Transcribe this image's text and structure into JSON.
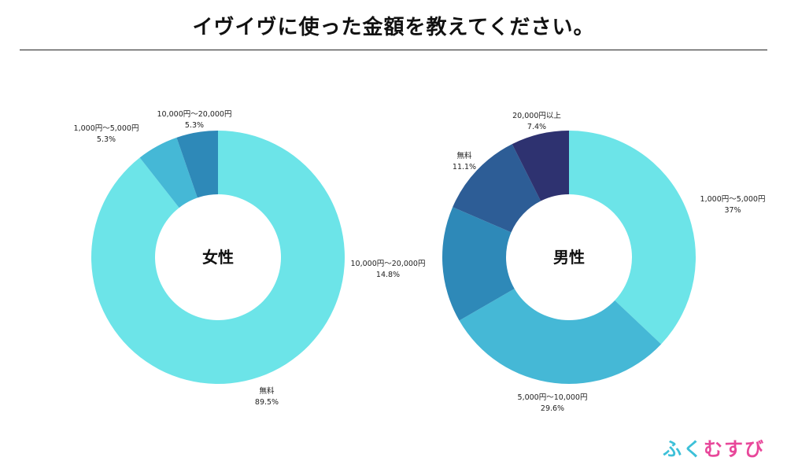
{
  "title": "イヴイヴに使った金額を教えてください。",
  "logo": {
    "chars": [
      "ふ",
      "く",
      "む",
      "す",
      "び"
    ],
    "colors": [
      "#3dc0d8",
      "#3dc0d8",
      "#e8479a",
      "#e8479a",
      "#e8479a"
    ]
  },
  "chart_data": [
    {
      "type": "pie",
      "donut": true,
      "center_label": "女性",
      "slices": [
        {
          "label": "無料",
          "value_text": "89.5%",
          "value": 89.5,
          "color": "#6ce4e8"
        },
        {
          "label": "1,000円〜5,000円",
          "value_text": "5.3%",
          "value": 5.3,
          "color": "#45b8d6"
        },
        {
          "label": "10,000円〜20,000円",
          "value_text": "5.3%",
          "value": 5.3,
          "color": "#2e89b8"
        }
      ],
      "extra_labels": [
        {
          "label": "10,000円〜20,000円",
          "value_text": "14.8%"
        }
      ]
    },
    {
      "type": "pie",
      "donut": true,
      "center_label": "男性",
      "slices": [
        {
          "label": "1,000円〜5,000円",
          "value_text": "37%",
          "value": 37.0,
          "color": "#6ce4e8"
        },
        {
          "label": "5,000円〜10,000円",
          "value_text": "29.6%",
          "value": 29.6,
          "color": "#45b8d6"
        },
        {
          "label": "",
          "value_text": "",
          "value": 14.8,
          "color": "#2e89b8"
        },
        {
          "label": "無料",
          "value_text": "11.1%",
          "value": 11.1,
          "color": "#2d5d96"
        },
        {
          "label": "20,000円以上",
          "value_text": "7.4%",
          "value": 7.4,
          "color": "#2e3270"
        }
      ]
    }
  ]
}
